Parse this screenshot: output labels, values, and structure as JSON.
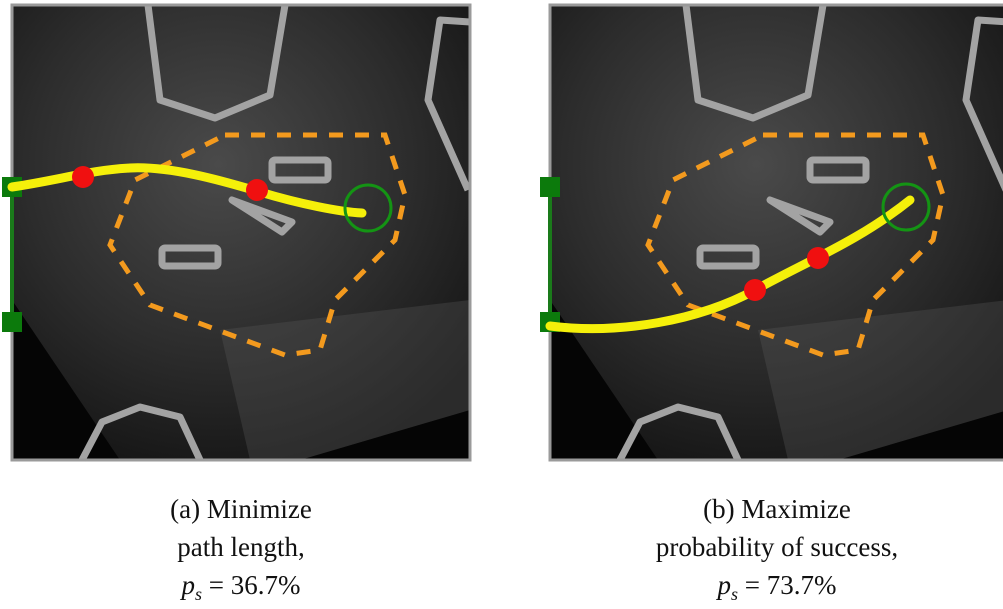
{
  "panels": [
    {
      "label": "(a)",
      "caption_lines": [
        "Minimize",
        "path length,"
      ],
      "metric_symbol": "p",
      "metric_subscript": "s",
      "metric_value": "= 36.7%"
    },
    {
      "label": "(b)",
      "caption_lines": [
        "Maximize",
        "probability of success,"
      ],
      "metric_symbol": "p",
      "metric_subscript": "s",
      "metric_value": "= 73.7%"
    }
  ]
}
